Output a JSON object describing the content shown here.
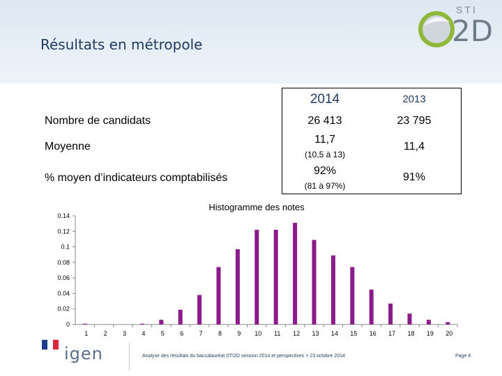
{
  "header": {
    "title": "Résultats en métropole",
    "logo": {
      "sti": "STI",
      "d2": "2D"
    }
  },
  "results_table": {
    "columns": [
      "2014",
      "2013"
    ],
    "rows": [
      {
        "label": "Nombre de candidats",
        "v2014": "26 413",
        "v2014_sub": "",
        "v2013": "23 795"
      },
      {
        "label": "Moyenne",
        "v2014": "11,7",
        "v2014_sub": "(10,5 à 13)",
        "v2013": "11,4"
      },
      {
        "label": "% moyen d’indicateurs comptabilisés",
        "v2014": "92%",
        "v2014_sub": "(81 à 97%)",
        "v2013": "91%"
      }
    ]
  },
  "chart_data": {
    "type": "bar",
    "title": "Histogramme des notes",
    "categories": [
      "1",
      "2",
      "3",
      "4",
      "5",
      "6",
      "7",
      "8",
      "9",
      "10",
      "11",
      "12",
      "13",
      "14",
      "15",
      "16",
      "17",
      "18",
      "19",
      "20"
    ],
    "values": [
      0.001,
      0,
      0,
      0.001,
      0.006,
      0.019,
      0.038,
      0.074,
      0.097,
      0.122,
      0.122,
      0.131,
      0.109,
      0.089,
      0.074,
      0.045,
      0.027,
      0.014,
      0.006,
      0.003
    ],
    "yticks": [
      "0.14",
      "0.12",
      "0.1",
      "0.08",
      "0.06",
      "0.04",
      "0.02",
      "0"
    ],
    "ylim": [
      0,
      0.14
    ],
    "xlabel": "",
    "ylabel": "",
    "bar_color": "#8b1a8b"
  },
  "footer": {
    "logo_text": "igen",
    "text": "Analyse des résultats du baccalauréat STI2D session 2014 et perspectives > 23 octobre 2014",
    "page": "Page 8"
  }
}
